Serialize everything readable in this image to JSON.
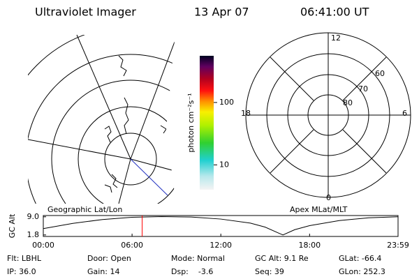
{
  "header": {
    "title": "Ultraviolet Imager",
    "date": "13 Apr 07",
    "time": "06:41:00 UT"
  },
  "geographic": {
    "title": "Geographic Lat/Lon"
  },
  "apex": {
    "title": "Apex MLat/MLT",
    "mlt_labels": [
      "12",
      "6",
      "0",
      "18"
    ],
    "lat_labels": [
      "60",
      "70",
      "80"
    ]
  },
  "colorbar": {
    "label": "photon cm⁻²s⁻¹",
    "lim": [
      4,
      560
    ],
    "log": true,
    "ticks": [
      10,
      100
    ]
  },
  "chart_data": {
    "type": "line",
    "ylabel": "GC Alt",
    "x": [
      0,
      2,
      4,
      6,
      8,
      10,
      12,
      14,
      15,
      16,
      16.2,
      17,
      18,
      20,
      22,
      23.98
    ],
    "values": [
      4.3,
      6.4,
      7.9,
      8.8,
      9.1,
      8.9,
      8.1,
      6.5,
      4.9,
      2.3,
      1.8,
      3.9,
      5.5,
      7.5,
      8.6,
      9.0
    ],
    "color": "#000000",
    "current_time": 6.683,
    "current_color": "#ff0000",
    "xlim": [
      0,
      23.98
    ],
    "xticks": [
      {
        "value": 0,
        "label": "00:00"
      },
      {
        "value": 6,
        "label": "06:00"
      },
      {
        "value": 12,
        "label": "12:00"
      },
      {
        "value": 18,
        "label": "18:00"
      },
      {
        "value": 23.98,
        "label": "23:59"
      }
    ],
    "ylim": [
      1.2,
      9.5
    ],
    "yticks": [
      {
        "value": 9,
        "label": "9.0"
      },
      1.8
    ]
  },
  "footer": {
    "rows": [
      [
        "Flt: LBHL",
        "Door: Open",
        "Mode: Normal",
        "GC Alt: 9.1 Re",
        "GLat: -66.4"
      ],
      [
        "IP: 36.0",
        "Gain: 14",
        "Dsp:    -3.6",
        "Seq: 39",
        "GLon: 252.3"
      ]
    ]
  }
}
